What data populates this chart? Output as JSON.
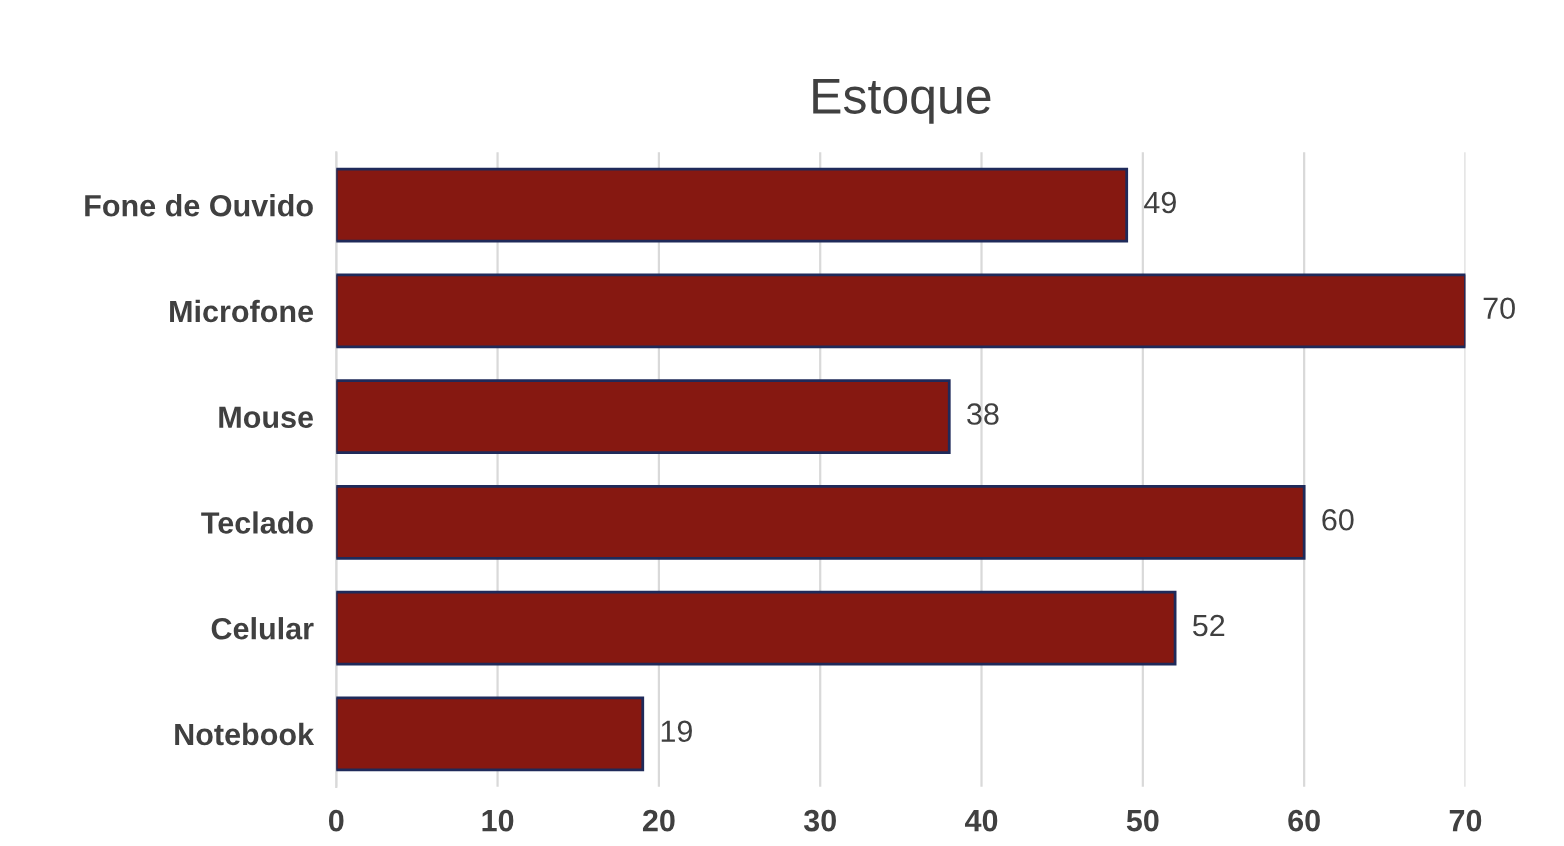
{
  "chart_data": {
    "type": "bar",
    "orientation": "horizontal",
    "title": "Estoque",
    "categories": [
      "Fone de Ouvido",
      "Microfone",
      "Mouse",
      "Teclado",
      "Celular",
      "Notebook"
    ],
    "values": [
      49,
      70,
      38,
      60,
      52,
      19
    ],
    "color": "#861811",
    "xlim": [
      0,
      70
    ],
    "xticks": [
      0,
      10,
      20,
      30,
      40,
      50,
      60,
      70
    ],
    "grid": "x",
    "data_labels": true
  }
}
